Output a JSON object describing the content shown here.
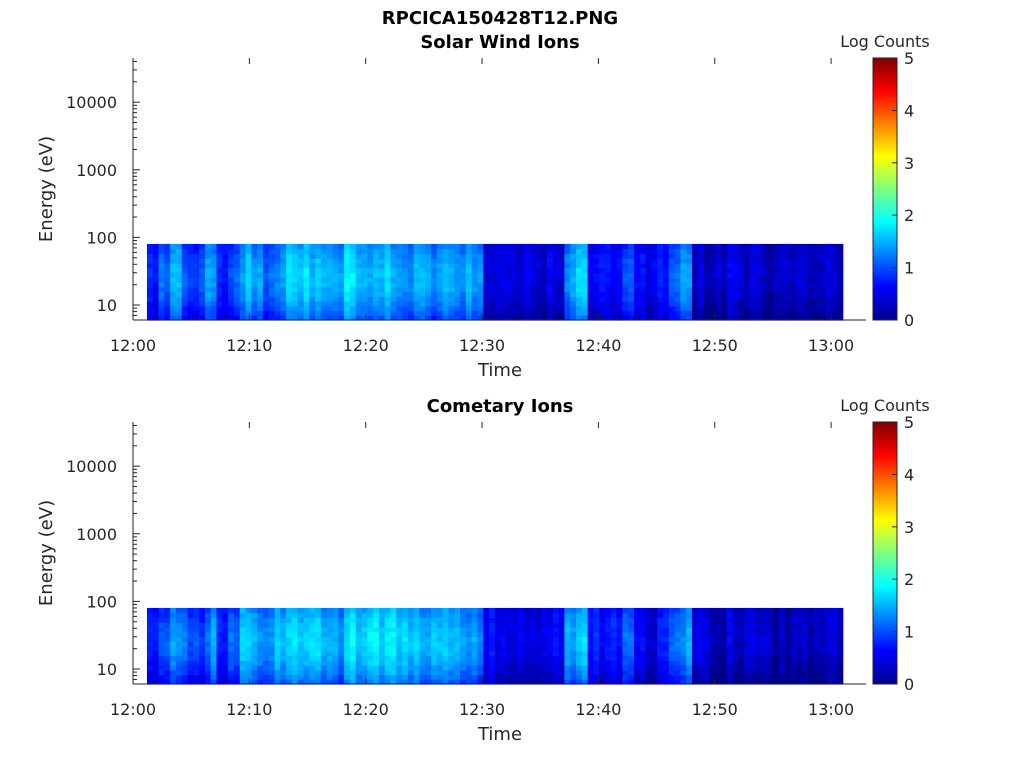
{
  "figure_title": "RPCICA150428T12.PNG",
  "chart_data": [
    {
      "type": "heatmap",
      "title": "Solar Wind Ions",
      "xlabel": "Time",
      "ylabel": "Energy (eV)",
      "x_ticks": [
        "12:00",
        "12:10",
        "12:20",
        "12:30",
        "12:40",
        "12:50",
        "13:00"
      ],
      "x_range_minutes_after_12": [
        0,
        63
      ],
      "y_scale": "log",
      "y_ticks": [
        "10",
        "100",
        "1000",
        "10000"
      ],
      "y_range_eV": [
        6,
        45000
      ],
      "data_coverage": {
        "time_start": "12:01",
        "time_end": "13:01",
        "energy_min_eV": 6,
        "energy_max_eV": 80
      },
      "colorbar": {
        "label": "Log Counts",
        "min": 0,
        "max": 5,
        "ticks": [
          "0",
          "1",
          "2",
          "3",
          "4",
          "5"
        ],
        "colormap": "jet"
      },
      "mean_log_counts_by_minute": [
        0.7,
        1.0,
        1.2,
        0.9,
        0.8,
        1.1,
        0.6,
        0.9,
        1.3,
        1.2,
        1.0,
        1.2,
        1.4,
        1.4,
        1.3,
        1.3,
        1.1,
        1.5,
        1.2,
        1.3,
        1.4,
        1.3,
        1.2,
        1.2,
        1.1,
        1.2,
        1.2,
        1.2,
        1.1,
        0.5,
        0.4,
        0.5,
        0.4,
        0.5,
        0.4,
        0.5,
        1.1,
        1.4,
        0.6,
        0.5,
        0.7,
        0.8,
        0.6,
        0.4,
        0.6,
        0.8,
        1.1,
        0.4,
        0.3,
        0.3,
        0.5,
        0.3,
        0.3,
        0.3,
        0.2,
        0.2,
        0.3,
        0.3,
        0.3,
        0.3
      ]
    },
    {
      "type": "heatmap",
      "title": "Cometary Ions",
      "xlabel": "Time",
      "ylabel": "Energy (eV)",
      "x_ticks": [
        "12:00",
        "12:10",
        "12:20",
        "12:30",
        "12:40",
        "12:50",
        "13:00"
      ],
      "x_range_minutes_after_12": [
        0,
        63
      ],
      "y_scale": "log",
      "y_ticks": [
        "10",
        "100",
        "1000",
        "10000"
      ],
      "y_range_eV": [
        6,
        45000
      ],
      "data_coverage": {
        "time_start": "12:01",
        "time_end": "13:01",
        "energy_min_eV": 6,
        "energy_max_eV": 80
      },
      "colorbar": {
        "label": "Log Counts",
        "min": 0,
        "max": 5,
        "ticks": [
          "0",
          "1",
          "2",
          "3",
          "4",
          "5"
        ],
        "colormap": "jet"
      },
      "mean_log_counts_by_minute": [
        0.7,
        1.0,
        1.2,
        0.9,
        0.8,
        1.1,
        0.6,
        0.9,
        1.3,
        1.3,
        1.1,
        1.3,
        1.5,
        1.5,
        1.5,
        1.4,
        1.2,
        1.6,
        1.4,
        1.5,
        1.5,
        1.5,
        1.4,
        1.4,
        1.3,
        1.3,
        1.3,
        1.3,
        1.1,
        0.6,
        0.5,
        0.5,
        0.4,
        0.5,
        0.5,
        0.6,
        1.2,
        1.5,
        0.7,
        0.5,
        0.7,
        0.8,
        0.6,
        0.5,
        0.6,
        0.9,
        1.2,
        0.4,
        0.3,
        0.3,
        0.4,
        0.3,
        0.3,
        0.3,
        0.2,
        0.2,
        0.3,
        0.3,
        0.3,
        0.3
      ]
    }
  ]
}
